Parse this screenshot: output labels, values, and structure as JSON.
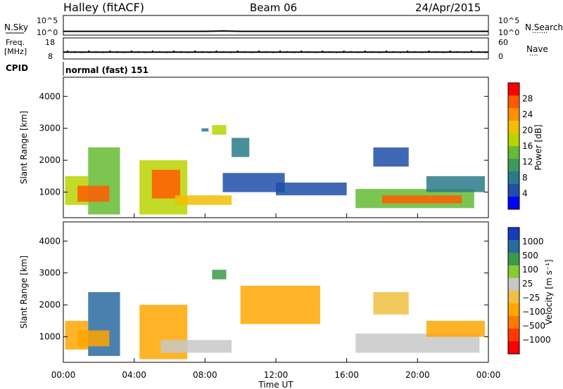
{
  "header": {
    "station": "Halley (fitACF)",
    "beam": "Beam 06",
    "date": "24/Apr/2015"
  },
  "colors": {
    "power_scale": [
      "#0000ff",
      "#1f4fa8",
      "#2a7a8a",
      "#3d9a5a",
      "#66bb33",
      "#b8d400",
      "#f0c000",
      "#ff9000",
      "#ff5a00",
      "#ff0000"
    ],
    "velocity_scale": [
      "#ff0000",
      "#ff3800",
      "#ff7a00",
      "#ffa600",
      "#f0c040",
      "#c8c8c8",
      "#88cc33",
      "#3a9a4a",
      "#2a6aa0",
      "#1a3ab8"
    ]
  },
  "chart_data": [
    {
      "type": "line",
      "panel": "noise",
      "left_label": "N.Sky",
      "left_ticks": [
        "10^5",
        "10^0"
      ],
      "right_label": "N.Search",
      "right_ticks": [
        "10^5",
        "10^0"
      ],
      "right_legend": "·······",
      "x": [
        0,
        1,
        2,
        3,
        4,
        5,
        6,
        7,
        8,
        9,
        10,
        11,
        12,
        13,
        14,
        15,
        16,
        17,
        18,
        19,
        20,
        21,
        22,
        23,
        24
      ],
      "y_log10": [
        0.7,
        0.7,
        0.7,
        0.7,
        0.7,
        0.7,
        0.7,
        0.7,
        0.7,
        0.8,
        0.7,
        0.7,
        0.7,
        0.7,
        0.7,
        0.7,
        0.7,
        0.7,
        0.7,
        0.7,
        0.7,
        0.7,
        0.7,
        0.7,
        0.7
      ],
      "xlim": [
        0,
        24
      ]
    },
    {
      "type": "line",
      "panel": "frequency",
      "left_label": "Freq.",
      "left_unit": "[MHz]",
      "left_ticks": [
        "18",
        "8"
      ],
      "right_label": "Nave",
      "right_ticks": [
        "60",
        "0"
      ],
      "right_legend": "····",
      "x": [
        0,
        24
      ],
      "freq_mhz": [
        11.0,
        11.0
      ],
      "ylim": [
        8,
        18
      ],
      "xlim": [
        0,
        24
      ]
    },
    {
      "type": "table",
      "panel": "cpid",
      "label": "CPID",
      "value": "normal (fast) 151"
    },
    {
      "type": "heatmap",
      "panel": "power",
      "ylabel": "Slant Range [km]",
      "yticks": [
        "1000",
        "2000",
        "3000",
        "4000"
      ],
      "ylim": [
        200,
        4600
      ],
      "xlim": [
        0,
        24
      ],
      "colorbar_label": "Power [dB]",
      "colorbar_ticks": [
        "4",
        "8",
        "12",
        "16",
        "20",
        "24",
        "28"
      ],
      "colorbar_range": [
        0,
        32
      ],
      "regions": [
        {
          "t0": 0.1,
          "t1": 1.4,
          "r0": 600,
          "r1": 1500,
          "value": 18
        },
        {
          "t0": 1.4,
          "t1": 3.2,
          "r0": 300,
          "r1": 2400,
          "value": 14
        },
        {
          "t0": 0.8,
          "t1": 2.6,
          "r0": 700,
          "r1": 1200,
          "value": 28
        },
        {
          "t0": 4.3,
          "t1": 7.0,
          "r0": 300,
          "r1": 2000,
          "value": 16
        },
        {
          "t0": 5.0,
          "t1": 6.6,
          "r0": 800,
          "r1": 1700,
          "value": 28
        },
        {
          "t0": 6.3,
          "t1": 9.5,
          "r0": 600,
          "r1": 900,
          "value": 20
        },
        {
          "t0": 8.4,
          "t1": 9.2,
          "r0": 2800,
          "r1": 3100,
          "value": 16
        },
        {
          "t0": 7.8,
          "t1": 8.2,
          "r0": 2900,
          "r1": 3000,
          "value": 8
        },
        {
          "t0": 9.5,
          "t1": 10.5,
          "r0": 2100,
          "r1": 2700,
          "value": 8
        },
        {
          "t0": 9.0,
          "t1": 12.5,
          "r0": 1000,
          "r1": 1600,
          "value": 6
        },
        {
          "t0": 12.0,
          "t1": 16.0,
          "r0": 900,
          "r1": 1300,
          "value": 5
        },
        {
          "t0": 16.5,
          "t1": 23.2,
          "r0": 500,
          "r1": 1100,
          "value": 14
        },
        {
          "t0": 18.0,
          "t1": 22.5,
          "r0": 650,
          "r1": 900,
          "value": 28
        },
        {
          "t0": 20.5,
          "t1": 23.8,
          "r0": 1000,
          "r1": 1500,
          "value": 8
        },
        {
          "t0": 17.5,
          "t1": 19.5,
          "r0": 1800,
          "r1": 2400,
          "value": 6
        }
      ]
    },
    {
      "type": "heatmap",
      "panel": "velocity",
      "ylabel": "Slant Range [km]",
      "yticks": [
        "1000",
        "2000",
        "3000",
        "4000"
      ],
      "ylim": [
        200,
        4600
      ],
      "xlim": [
        0,
        24
      ],
      "colorbar_label": "Velocity [m s⁻¹]",
      "colorbar_ticks": [
        "1000",
        "500",
        "100",
        "25",
        "−25",
        "−100",
        "−500",
        "−1000"
      ],
      "regions": [
        {
          "t0": 0.1,
          "t1": 1.4,
          "r0": 600,
          "r1": 1500,
          "value": -300
        },
        {
          "t0": 1.4,
          "t1": 3.2,
          "r0": 400,
          "r1": 2400,
          "value": 600
        },
        {
          "t0": 0.8,
          "t1": 2.6,
          "r0": 700,
          "r1": 1200,
          "value": -200
        },
        {
          "t0": 4.3,
          "t1": 7.0,
          "r0": 300,
          "r1": 2000,
          "value": -300
        },
        {
          "t0": 5.5,
          "t1": 9.5,
          "r0": 500,
          "r1": 900,
          "value": 0
        },
        {
          "t0": 8.4,
          "t1": 9.2,
          "r0": 2800,
          "r1": 3100,
          "value": 200
        },
        {
          "t0": 10.0,
          "t1": 14.5,
          "r0": 1400,
          "r1": 2600,
          "value": -300
        },
        {
          "t0": 16.5,
          "t1": 23.5,
          "r0": 500,
          "r1": 1100,
          "value": 0
        },
        {
          "t0": 20.5,
          "t1": 23.8,
          "r0": 1000,
          "r1": 1500,
          "value": -300
        },
        {
          "t0": 17.5,
          "t1": 19.5,
          "r0": 1700,
          "r1": 2400,
          "value": -100
        }
      ]
    }
  ],
  "xaxis": {
    "ticks": [
      "00:00",
      "04:00",
      "08:00",
      "12:00",
      "16:00",
      "20:00",
      "00:00"
    ],
    "label": "Time UT"
  }
}
